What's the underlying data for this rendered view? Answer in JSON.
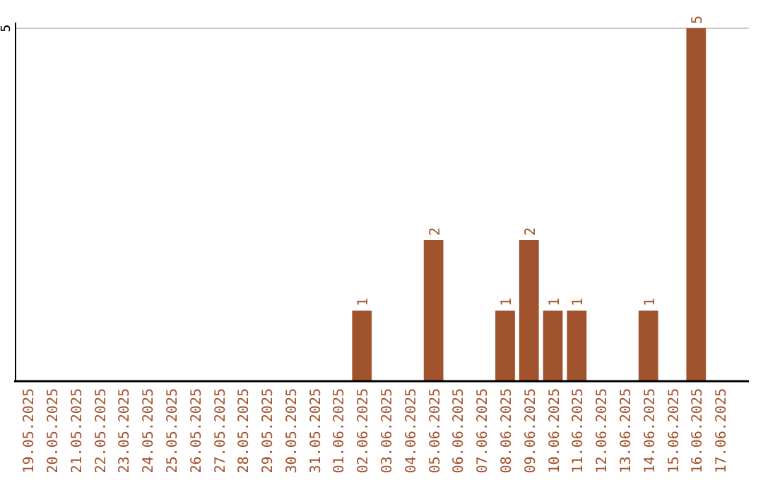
{
  "chart_data": {
    "type": "bar",
    "categories": [
      "19.05.2025",
      "20.05.2025",
      "21.05.2025",
      "22.05.2025",
      "23.05.2025",
      "24.05.2025",
      "25.05.2025",
      "26.05.2025",
      "27.05.2025",
      "28.05.2025",
      "29.05.2025",
      "30.05.2025",
      "31.05.2025",
      "01.06.2025",
      "02.06.2025",
      "03.06.2025",
      "04.06.2025",
      "05.06.2025",
      "06.06.2025",
      "07.06.2025",
      "08.06.2025",
      "09.06.2025",
      "10.06.2025",
      "11.06.2025",
      "12.06.2025",
      "13.06.2025",
      "14.06.2025",
      "15.06.2025",
      "16.06.2025",
      "17.06.2025"
    ],
    "values": [
      null,
      null,
      null,
      null,
      null,
      null,
      null,
      null,
      null,
      null,
      null,
      null,
      null,
      null,
      1,
      null,
      null,
      2,
      null,
      null,
      1,
      2,
      1,
      1,
      null,
      null,
      1,
      null,
      5,
      null
    ],
    "data_labels": true,
    "color": "#a0522d",
    "ylim": [
      0,
      5
    ],
    "yticks": [
      5
    ],
    "ref_lines": [
      {
        "axis": "y",
        "value": 5,
        "color": "#cccccc"
      }
    ]
  }
}
